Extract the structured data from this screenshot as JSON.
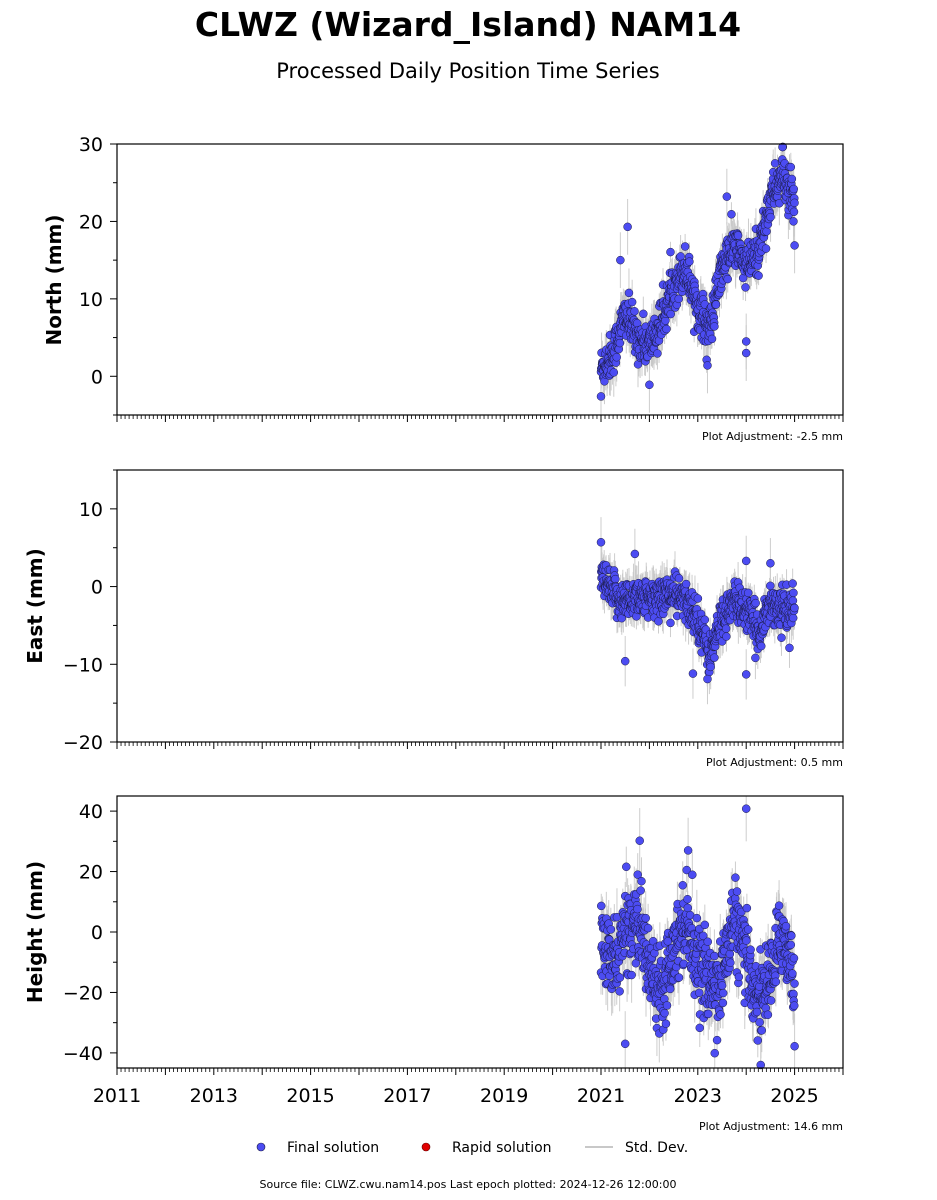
{
  "chart_data": {
    "type": "scatter",
    "title": "CLWZ (Wizard_Island) NAM14",
    "subtitle": "Processed Daily Position Time Series",
    "x_range": [
      2011,
      2026
    ],
    "x_tick_labels": [
      "2011",
      "2013",
      "2015",
      "2017",
      "2019",
      "2021",
      "2023",
      "2025"
    ],
    "colors": {
      "final": "#4c4cf2",
      "rapid": "#e00000",
      "stddev": "#c8c8c8",
      "marker_edge": "#1a1a40"
    },
    "panels": [
      {
        "name": "north",
        "ylabel": "North (mm)",
        "ylim": [
          -5,
          30
        ],
        "yticks": [
          0,
          10,
          20,
          30
        ],
        "ytick_labels": [
          "0",
          "10",
          "20",
          "30"
        ],
        "adjustment_label": "Plot Adjustment: -2.5 mm",
        "trend": [
          [
            2021.0,
            1
          ],
          [
            2021.25,
            3
          ],
          [
            2021.5,
            8
          ],
          [
            2021.75,
            5
          ],
          [
            2022.0,
            4
          ],
          [
            2022.25,
            7
          ],
          [
            2022.5,
            12
          ],
          [
            2022.75,
            14
          ],
          [
            2023.0,
            9
          ],
          [
            2023.25,
            6
          ],
          [
            2023.5,
            14
          ],
          [
            2023.75,
            17
          ],
          [
            2024.0,
            14
          ],
          [
            2024.25,
            16
          ],
          [
            2024.5,
            23
          ],
          [
            2024.75,
            26
          ],
          [
            2025.0,
            22
          ]
        ],
        "outliers": [
          [
            2021.4,
            15.0
          ],
          [
            2021.55,
            19.3
          ],
          [
            2023.6,
            23.2
          ],
          [
            2024.0,
            4.5
          ],
          [
            2024.0,
            3.0
          ],
          [
            2025.0,
            16.9
          ],
          [
            2021.0,
            -2.6
          ],
          [
            2022.0,
            -1.1
          ],
          [
            2023.2,
            1.4
          ],
          [
            2024.75,
            29.6
          ]
        ]
      },
      {
        "name": "east",
        "ylabel": "East (mm)",
        "ylim": [
          -20,
          15
        ],
        "yticks": [
          -20,
          -10,
          0,
          10
        ],
        "ytick_labels": [
          "−20",
          "−10",
          "0",
          "10"
        ],
        "adjustment_label": "Plot Adjustment: 0.5 mm",
        "trend": [
          [
            2021.0,
            1
          ],
          [
            2021.25,
            -1
          ],
          [
            2021.5,
            -2
          ],
          [
            2021.75,
            -1
          ],
          [
            2022.0,
            -2
          ],
          [
            2022.25,
            -1
          ],
          [
            2022.5,
            -1
          ],
          [
            2022.75,
            -2
          ],
          [
            2023.0,
            -4
          ],
          [
            2023.25,
            -9
          ],
          [
            2023.5,
            -4
          ],
          [
            2023.75,
            -2
          ],
          [
            2024.0,
            -3
          ],
          [
            2024.25,
            -6
          ],
          [
            2024.5,
            -2
          ],
          [
            2024.75,
            -3
          ],
          [
            2025.0,
            -3
          ]
        ],
        "outliers": [
          [
            2021.0,
            5.7
          ],
          [
            2021.5,
            -9.6
          ],
          [
            2022.9,
            -11.2
          ],
          [
            2023.2,
            -11.9
          ],
          [
            2024.0,
            -11.3
          ],
          [
            2021.7,
            4.2
          ],
          [
            2024.5,
            3.0
          ],
          [
            2024.0,
            3.3
          ]
        ]
      },
      {
        "name": "height",
        "ylabel": "Height (mm)",
        "ylim": [
          -45,
          45
        ],
        "yticks": [
          -40,
          -20,
          0,
          20,
          40
        ],
        "ytick_labels": [
          "−40",
          "−20",
          "0",
          "20",
          "40"
        ],
        "adjustment_label": "Plot Adjustment: 14.6 mm",
        "trend": [
          [
            2021.0,
            -2
          ],
          [
            2021.25,
            -12
          ],
          [
            2021.5,
            0
          ],
          [
            2021.75,
            5
          ],
          [
            2022.0,
            -12
          ],
          [
            2022.25,
            -18
          ],
          [
            2022.5,
            -5
          ],
          [
            2022.75,
            5
          ],
          [
            2023.0,
            -10
          ],
          [
            2023.25,
            -18
          ],
          [
            2023.5,
            -15
          ],
          [
            2023.75,
            5
          ],
          [
            2024.0,
            -10
          ],
          [
            2024.25,
            -22
          ],
          [
            2024.5,
            -15
          ],
          [
            2024.75,
            0
          ],
          [
            2025.0,
            -15
          ]
        ],
        "outliers": [
          [
            2024.0,
            40.8
          ],
          [
            2022.8,
            27.0
          ],
          [
            2021.8,
            30.2
          ],
          [
            2021.5,
            -37.0
          ],
          [
            2023.35,
            -40.1
          ],
          [
            2024.3,
            -44.0
          ],
          [
            2025.0,
            -37.8
          ]
        ]
      }
    ],
    "legend": [
      "Final solution",
      "Rapid solution",
      "Std. Dev."
    ],
    "legend_position": "bottom"
  },
  "footer": {
    "source": "Source file: CLWZ.cwu.nam14.pos  Last epoch plotted: 2024-12-26 12:00:00"
  }
}
